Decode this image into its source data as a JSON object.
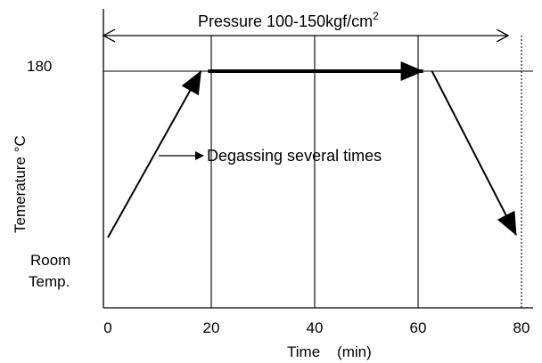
{
  "chart_data": {
    "type": "line",
    "title": "",
    "xlabel": "Time    (min)",
    "ylabel": "Temerature   °C",
    "xlim": [
      0,
      80
    ],
    "x_ticks": [
      0,
      20,
      40,
      60,
      80
    ],
    "x_tick_labels": [
      "0",
      "20",
      "40",
      "60",
      "80"
    ],
    "y_tick_labels": {
      "top": "180",
      "bottom": [
        "Room",
        "Temp."
      ]
    },
    "grid": {
      "vertical": true,
      "at": [
        20,
        40,
        60,
        80
      ],
      "dashed_at": [
        80
      ]
    },
    "series": [
      {
        "x": [
          0,
          18,
          62,
          80
        ],
        "y": [
          "Room Temp.",
          "180",
          "180",
          "Room Temp."
        ]
      }
    ],
    "annotations": {
      "pressure": {
        "prefix": "Pressure 100-150kgf/cm",
        "superscript": "2"
      },
      "degassing": "Degassing several times"
    }
  }
}
